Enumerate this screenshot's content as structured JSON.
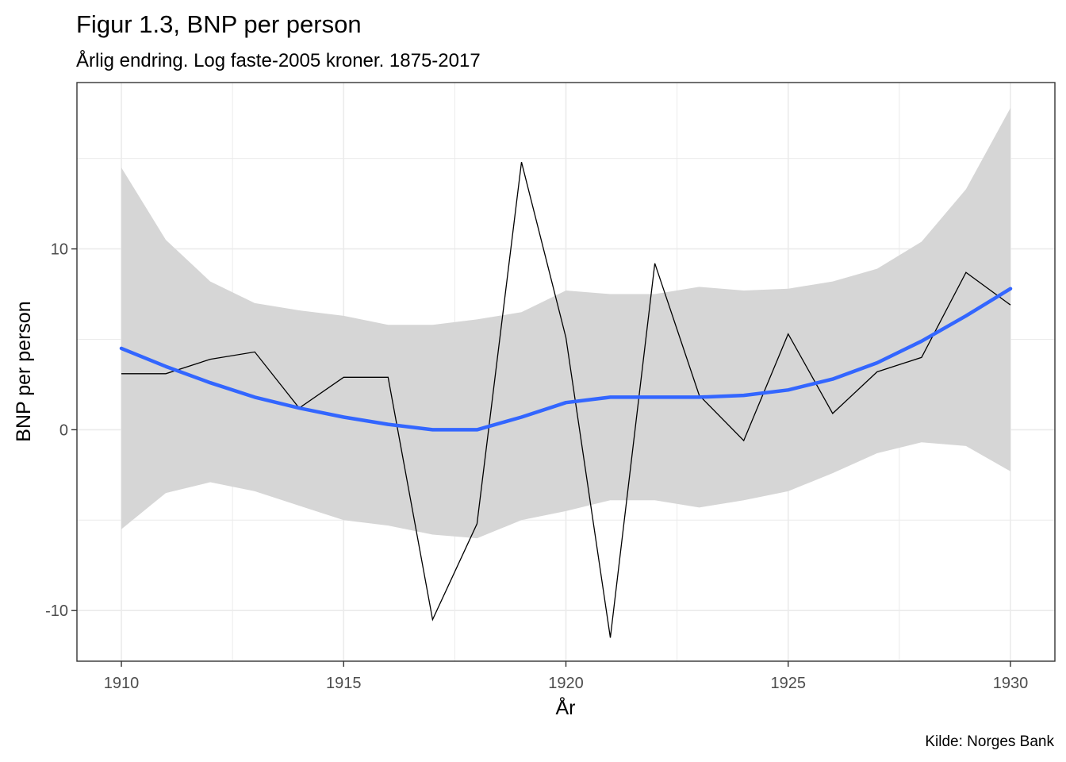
{
  "chart_data": {
    "type": "line",
    "title": "Figur 1.3, BNP per person",
    "subtitle": "Årlig endring. Log faste-2005 kroner. 1875-2017",
    "xlabel": "År",
    "ylabel": "BNP per person",
    "caption": "Kilde: Norges Bank",
    "xlim": [
      1909,
      1931
    ],
    "ylim": [
      -12.8,
      19.2
    ],
    "x_ticks": [
      1910,
      1915,
      1920,
      1925,
      1930
    ],
    "x_tick_labels": [
      "1910",
      "1915",
      "1920",
      "1925",
      "1930"
    ],
    "y_ticks": [
      -10,
      0,
      10
    ],
    "y_tick_labels": [
      "-10",
      "0",
      "10"
    ],
    "grid": true,
    "legend": "none",
    "colors": {
      "line": "#000000",
      "smooth": "#3366ff",
      "ribbon": "#d6d6d6",
      "grid": "#ebebeb",
      "border": "#333333"
    },
    "series": [
      {
        "kind": "line",
        "x": [
          1910,
          1911,
          1912,
          1913,
          1914,
          1915,
          1916,
          1917,
          1918,
          1919,
          1920,
          1921,
          1922,
          1923,
          1924,
          1925,
          1926,
          1927,
          1928,
          1929,
          1930
        ],
        "values": [
          3.1,
          3.1,
          3.9,
          4.3,
          1.2,
          2.9,
          2.9,
          -10.5,
          -5.2,
          14.8,
          5.1,
          -11.5,
          9.2,
          1.9,
          -0.6,
          5.3,
          0.9,
          3.2,
          4.0,
          8.7,
          6.9
        ]
      },
      {
        "kind": "smooth",
        "x": [
          1910,
          1911,
          1912,
          1913,
          1914,
          1915,
          1916,
          1917,
          1918,
          1919,
          1920,
          1921,
          1922,
          1923,
          1924,
          1925,
          1926,
          1927,
          1928,
          1929,
          1930
        ],
        "values": [
          4.5,
          3.5,
          2.6,
          1.8,
          1.2,
          0.7,
          0.3,
          0.0,
          0.0,
          0.7,
          1.5,
          1.8,
          1.8,
          1.8,
          1.9,
          2.2,
          2.8,
          3.7,
          4.9,
          6.3,
          7.8
        ],
        "lower": [
          -5.5,
          -3.5,
          -2.9,
          -3.4,
          -4.2,
          -5.0,
          -5.3,
          -5.8,
          -6.0,
          -5.0,
          -4.5,
          -3.9,
          -3.9,
          -4.3,
          -3.9,
          -3.4,
          -2.4,
          -1.3,
          -0.7,
          -0.9,
          -2.3
        ],
        "upper": [
          14.5,
          10.5,
          8.2,
          7.0,
          6.6,
          6.3,
          5.8,
          5.8,
          6.1,
          6.5,
          7.7,
          7.5,
          7.5,
          7.9,
          7.7,
          7.8,
          8.2,
          8.9,
          10.4,
          13.3,
          17.8
        ]
      }
    ]
  }
}
